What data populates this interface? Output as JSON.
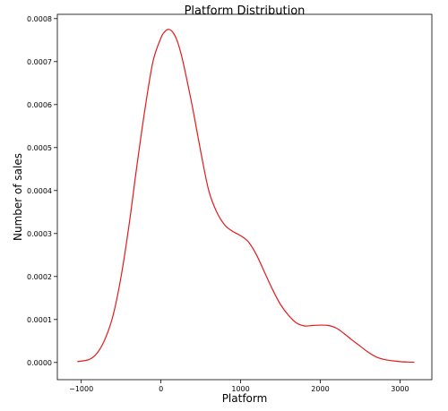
{
  "chart_data": {
    "type": "line",
    "title": "Platform Distribution",
    "xlabel": "Platform",
    "ylabel": "Number of sales",
    "xlim": [
      -1300,
      3400
    ],
    "ylim": [
      -4e-05,
      0.00081
    ],
    "xticks": [
      -1000,
      0,
      1000,
      2000,
      3000
    ],
    "xtick_labels": [
      "−1000",
      "0",
      "1000",
      "2000",
      "3000"
    ],
    "yticks": [
      0.0,
      0.0001,
      0.0002,
      0.0003,
      0.0004,
      0.0005,
      0.0006,
      0.0007,
      0.0008
    ],
    "ytick_labels": [
      "0.0000",
      "0.0001",
      "0.0002",
      "0.0003",
      "0.0004",
      "0.0005",
      "0.0006",
      "0.0007",
      "0.0008"
    ],
    "grid": false,
    "series": [
      {
        "color": "#e31a1c",
        "x": [
          -1050,
          -900,
          -800,
          -700,
          -600,
          -500,
          -400,
          -300,
          -200,
          -100,
          0,
          50,
          100,
          150,
          200,
          250,
          300,
          400,
          500,
          600,
          700,
          800,
          900,
          1000,
          1100,
          1200,
          1300,
          1400,
          1500,
          1600,
          1700,
          1800,
          1900,
          2000,
          2100,
          2200,
          2300,
          2400,
          2500,
          2600,
          2700,
          2800,
          2900,
          3000,
          3100,
          3180
        ],
        "y": [
          2e-06,
          7e-06,
          2.2e-05,
          5.5e-05,
          0.00011,
          0.0002,
          0.00032,
          0.00046,
          0.00059,
          0.0007,
          0.000755,
          0.00077,
          0.000775,
          0.000768,
          0.00075,
          0.00072,
          0.00068,
          0.00059,
          0.00049,
          0.0004,
          0.00035,
          0.00032,
          0.000305,
          0.000295,
          0.00028,
          0.00025,
          0.00021,
          0.00017,
          0.000135,
          0.00011,
          9.2e-05,
          8.5e-05,
          8.6e-05,
          8.7e-05,
          8.6e-05,
          8e-05,
          6.7e-05,
          5.2e-05,
          3.8e-05,
          2.4e-05,
          1.3e-05,
          7e-06,
          4e-06,
          2e-06,
          1e-06,
          5e-07
        ]
      }
    ]
  }
}
